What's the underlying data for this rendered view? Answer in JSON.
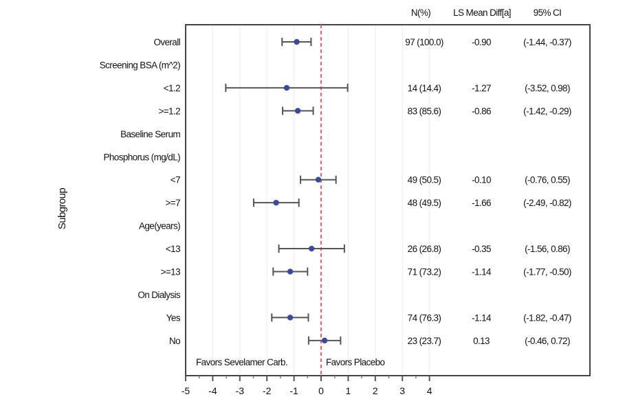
{
  "chart_data": {
    "type": "forest",
    "title": "",
    "xlabel": "",
    "ylabel": "Subgroup",
    "xlim": [
      -5,
      4.5
    ],
    "xticks": [
      -5,
      -4,
      -3,
      -2,
      -1,
      0,
      1,
      2,
      3,
      4
    ],
    "xtick_labels": [
      "-5",
      "-4",
      "-3",
      "-2",
      "-1",
      "0",
      "1",
      "2",
      "3",
      "4"
    ],
    "reference_line": 0,
    "annotations": {
      "left": "Favors Sevelamer Carb.",
      "right": "Favors Placebo"
    },
    "columns": {
      "n": "N(%)",
      "mean": "LS Mean Diff[a]",
      "ci": "95% CI"
    },
    "colors": {
      "point": "#3a4aa0",
      "whisker": "#555555",
      "reference": "#e06b6b",
      "grid": "#eeeeee",
      "frame": "#444444"
    },
    "rows": [
      {
        "label": "Overall",
        "is_header": false,
        "n": "97 (100.0)",
        "mean_text": "-0.90",
        "ci_text": "(-1.44, -0.37)",
        "estimate": -0.9,
        "lower": -1.44,
        "upper": -0.37
      },
      {
        "label": "Screening BSA (m^2)",
        "is_header": true
      },
      {
        "label": "<1.2",
        "is_header": false,
        "n": "14 (14.4)",
        "mean_text": "-1.27",
        "ci_text": "(-3.52, 0.98)",
        "estimate": -1.27,
        "lower": -3.52,
        "upper": 0.98
      },
      {
        "label": ">=1.2",
        "is_header": false,
        "n": "83 (85.6)",
        "mean_text": "-0.86",
        "ci_text": "(-1.42, -0.29)",
        "estimate": -0.86,
        "lower": -1.42,
        "upper": -0.29
      },
      {
        "label": "Baseline Serum",
        "is_header": true
      },
      {
        "label": "Phosphorus (mg/dL)",
        "is_header": true
      },
      {
        "label": "<7",
        "is_header": false,
        "n": "49 (50.5)",
        "mean_text": "-0.10",
        "ci_text": "(-0.76, 0.55)",
        "estimate": -0.1,
        "lower": -0.76,
        "upper": 0.55
      },
      {
        "label": ">=7",
        "is_header": false,
        "n": "48 (49.5)",
        "mean_text": "-1.66",
        "ci_text": "(-2.49, -0.82)",
        "estimate": -1.66,
        "lower": -2.49,
        "upper": -0.82
      },
      {
        "label": "Age(years)",
        "is_header": true
      },
      {
        "label": "<13",
        "is_header": false,
        "n": "26 (26.8)",
        "mean_text": "-0.35",
        "ci_text": "(-1.56, 0.86)",
        "estimate": -0.35,
        "lower": -1.56,
        "upper": 0.86
      },
      {
        "label": ">=13",
        "is_header": false,
        "n": "71 (73.2)",
        "mean_text": "-1.14",
        "ci_text": "(-1.77, -0.50)",
        "estimate": -1.14,
        "lower": -1.77,
        "upper": -0.5
      },
      {
        "label": "On Dialysis",
        "is_header": true
      },
      {
        "label": "Yes",
        "is_header": false,
        "n": "74 (76.3)",
        "mean_text": "-1.14",
        "ci_text": "(-1.82, -0.47)",
        "estimate": -1.14,
        "lower": -1.82,
        "upper": -0.47
      },
      {
        "label": "No",
        "is_header": false,
        "n": "23 (23.7)",
        "mean_text": "0.13",
        "ci_text": "(-0.46, 0.72)",
        "estimate": 0.13,
        "lower": -0.46,
        "upper": 0.72
      }
    ]
  }
}
